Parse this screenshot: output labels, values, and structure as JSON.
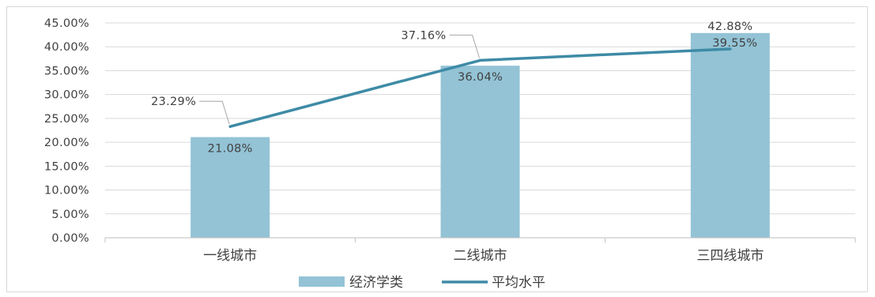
{
  "chart_data": {
    "type": "bar",
    "categories": [
      "一线城市",
      "二线城市",
      "三四线城市"
    ],
    "series": [
      {
        "name": "经济学类",
        "kind": "bar",
        "color": "#93c3d5",
        "values": [
          21.08,
          36.04,
          42.88
        ],
        "labels": [
          "21.08%",
          "36.04%",
          "42.88%"
        ]
      },
      {
        "name": "平均水平",
        "kind": "line",
        "color": "#3e8ba6",
        "values": [
          23.29,
          37.16,
          39.55
        ],
        "labels": [
          "23.29%",
          "37.16%",
          "39.55%"
        ]
      }
    ],
    "ylim": [
      0,
      45
    ],
    "ytick_step": 5,
    "yticks": [
      "0.00%",
      "5.00%",
      "10.00%",
      "15.00%",
      "20.00%",
      "25.00%",
      "30.00%",
      "35.00%",
      "40.00%",
      "45.00%"
    ],
    "grid": true,
    "legend_position": "bottom",
    "title": "",
    "xlabel": "",
    "ylabel": ""
  },
  "colors": {
    "grid": "#d9d9d9",
    "axis": "#bfbfbf",
    "text": "#404040",
    "leader": "#a6a6a6"
  }
}
